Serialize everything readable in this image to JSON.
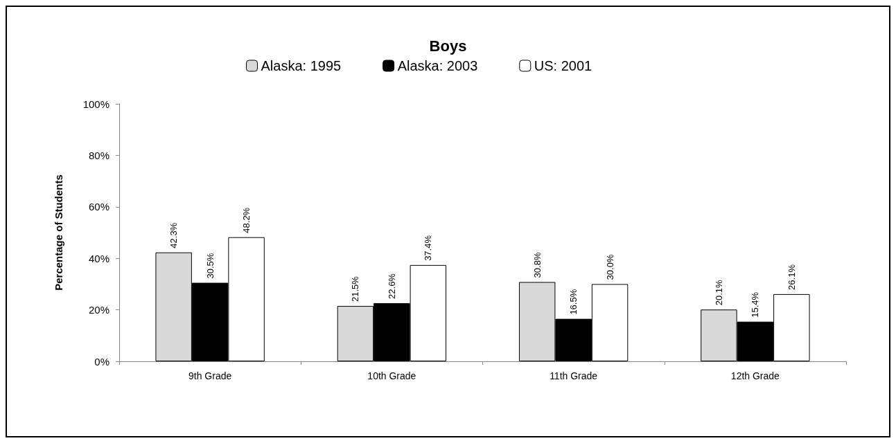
{
  "chart_data": {
    "type": "bar",
    "title": "Boys",
    "ylabel": "Percentage of Students",
    "categories": [
      "9th Grade",
      "10th Grade",
      "11th Grade",
      "12th Grade"
    ],
    "series": [
      {
        "name": "Alaska: 1995",
        "color": "#d9d9d9",
        "values": [
          42.3,
          21.5,
          30.8,
          20.1
        ],
        "value_labels": [
          "42.3%",
          "21.5%",
          "30.8%",
          "20.1%"
        ]
      },
      {
        "name": "Alaska: 2003",
        "color": "#000000",
        "values": [
          30.5,
          22.6,
          16.5,
          15.4
        ],
        "value_labels": [
          "30.5%",
          "22.6%",
          "16.5%",
          "15.4%"
        ]
      },
      {
        "name": "US: 2001",
        "color": "#ffffff",
        "values": [
          48.2,
          37.4,
          30.0,
          26.1
        ],
        "value_labels": [
          "48.2%",
          "37.4%",
          "30.0%",
          "26.1%"
        ]
      }
    ],
    "ylim": [
      0,
      100
    ],
    "yticks": [
      {
        "value": 0,
        "label": "0%"
      },
      {
        "value": 20,
        "label": "20%"
      },
      {
        "value": 40,
        "label": "40%"
      },
      {
        "value": 60,
        "label": "60%"
      },
      {
        "value": 80,
        "label": "80%"
      },
      {
        "value": 100,
        "label": "100%"
      }
    ],
    "grid": false,
    "legend": "top"
  }
}
